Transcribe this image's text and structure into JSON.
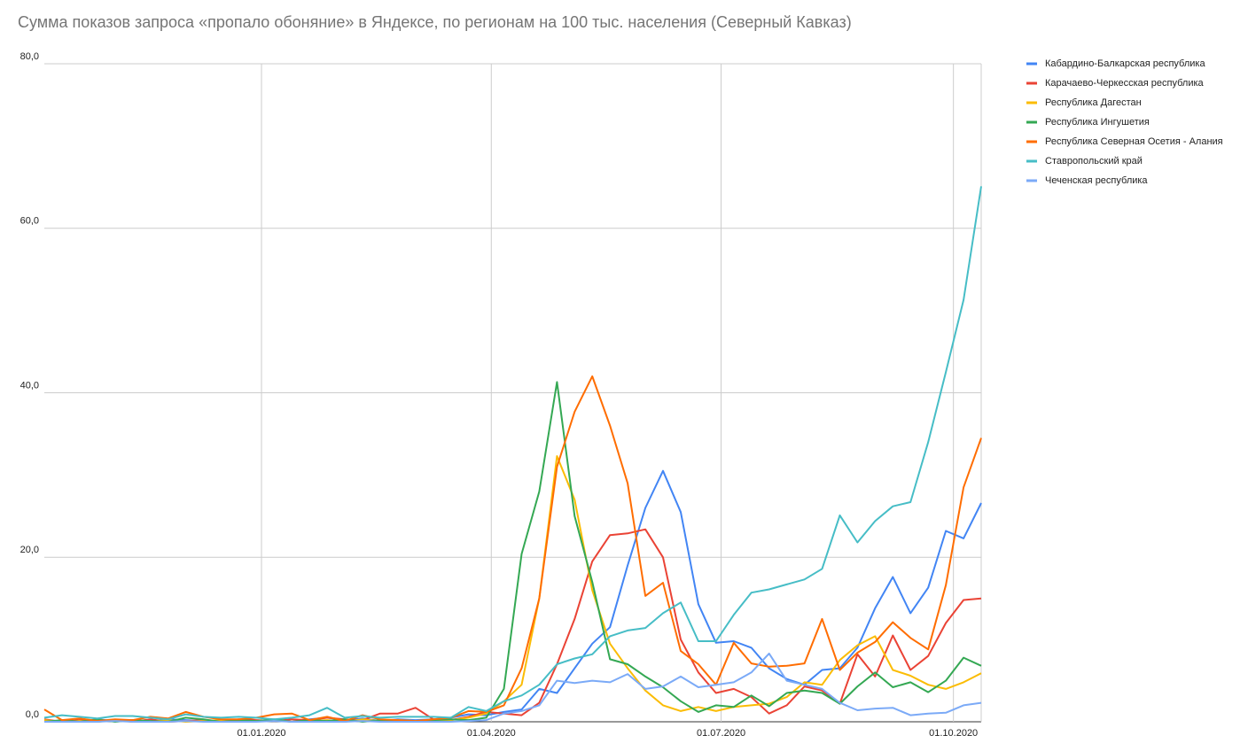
{
  "chart_data": {
    "type": "line",
    "title": "Сумма показов запроса «пропало обоняние» в Яндексе, по регионам на 100 тыс. населения (Северный Кавказ)",
    "x": [
      "2019-10-07",
      "2019-10-14",
      "2019-10-21",
      "2019-10-28",
      "2019-11-04",
      "2019-11-11",
      "2019-11-18",
      "2019-11-25",
      "2019-12-02",
      "2019-12-09",
      "2019-12-16",
      "2019-12-23",
      "2019-12-30",
      "2020-01-06",
      "2020-01-13",
      "2020-01-20",
      "2020-01-27",
      "2020-02-03",
      "2020-02-10",
      "2020-02-17",
      "2020-02-24",
      "2020-03-02",
      "2020-03-09",
      "2020-03-16",
      "2020-03-23",
      "2020-03-30",
      "2020-04-06",
      "2020-04-13",
      "2020-04-20",
      "2020-04-27",
      "2020-05-04",
      "2020-05-11",
      "2020-05-18",
      "2020-05-25",
      "2020-06-01",
      "2020-06-08",
      "2020-06-15",
      "2020-06-22",
      "2020-06-29",
      "2020-07-06",
      "2020-07-13",
      "2020-07-20",
      "2020-07-27",
      "2020-08-03",
      "2020-08-10",
      "2020-08-17",
      "2020-08-24",
      "2020-08-31",
      "2020-09-07",
      "2020-09-14",
      "2020-09-21",
      "2020-09-28",
      "2020-10-05",
      "2020-10-12"
    ],
    "xlim": [
      "2019-10-07",
      "2020-10-12"
    ],
    "xticks": [
      {
        "value": "2020-01-01",
        "label": "01.01.2020"
      },
      {
        "value": "2020-04-01",
        "label": "01.04.2020"
      },
      {
        "value": "2020-07-01",
        "label": "01.07.2020"
      },
      {
        "value": "2020-10-01",
        "label": "01.10.2020"
      }
    ],
    "ylim": [
      0,
      80
    ],
    "yticks": [
      {
        "value": 0,
        "label": "0,0"
      },
      {
        "value": 20,
        "label": "20,0"
      },
      {
        "value": 40,
        "label": "40,0"
      },
      {
        "value": 60,
        "label": "60,0"
      },
      {
        "value": 80,
        "label": "80,0"
      }
    ],
    "grid": true,
    "legend": "right",
    "series": [
      {
        "name": "Кабардино-Балкарская республика",
        "color": "#4285f4",
        "values": [
          0,
          0,
          0,
          0.3,
          0.1,
          0.2,
          0,
          0.3,
          0.2,
          0.1,
          0,
          0.2,
          0.1,
          0.2,
          0,
          0.3,
          0.5,
          0.2,
          0.4,
          0.1,
          0.3,
          0.2,
          0.3,
          0.5,
          0.9,
          0.8,
          1.2,
          1.5,
          4,
          3.5,
          6.5,
          9.5,
          11.5,
          19,
          26,
          30.5,
          25.5,
          14.3,
          9.6,
          9.8,
          9,
          6.5,
          5.2,
          4.5,
          6.3,
          6.5,
          9,
          13.8,
          17.6,
          13.2,
          16.3,
          23.2,
          22.3,
          26.6
        ]
      },
      {
        "name": "Карачаево-Черкесская республика",
        "color": "#ea4335",
        "values": [
          0.3,
          0,
          0.2,
          0,
          0.2,
          0,
          0.3,
          0,
          0.1,
          0.2,
          0,
          0.3,
          0.2,
          0.1,
          0.3,
          0.2,
          0.5,
          0.3,
          0.2,
          1,
          1,
          1.7,
          0.3,
          0.2,
          0.6,
          1.2,
          1,
          0.8,
          2.3,
          7,
          12.5,
          19.5,
          22.7,
          22.9,
          23.4,
          20,
          10,
          6,
          3.5,
          4,
          3,
          1,
          2,
          4.3,
          3.8,
          2.2,
          8.2,
          5.5,
          10.5,
          6.3,
          8,
          12,
          14.8,
          15
        ]
      },
      {
        "name": "Республика Дагестан",
        "color": "#fbbc04",
        "values": [
          0.2,
          0,
          0.1,
          0,
          0.2,
          0.1,
          0,
          0.2,
          0,
          0.1,
          0.2,
          0,
          0.1,
          0.2,
          0,
          0.1,
          0.2,
          0,
          0.3,
          0.1,
          0.2,
          0.1,
          0,
          0.2,
          0.5,
          1,
          2.5,
          4.5,
          15,
          32.3,
          27,
          16,
          9.5,
          6.5,
          3.8,
          2,
          1.3,
          1.8,
          1.3,
          1.8,
          2,
          2.2,
          3,
          4.8,
          4.5,
          7.5,
          9.3,
          10.4,
          6.3,
          5.6,
          4.5,
          4,
          4.8,
          5.9
        ]
      },
      {
        "name": "Республика Ингушетия",
        "color": "#34a853",
        "values": [
          0,
          0.2,
          0,
          0.3,
          0,
          0.2,
          0.1,
          0,
          0.5,
          0.3,
          0,
          0.2,
          0.1,
          0.3,
          0,
          0.2,
          0.1,
          0.3,
          0,
          0.2,
          0.1,
          0,
          0.2,
          0.3,
          0.2,
          0.5,
          4,
          20.4,
          28,
          41.3,
          25,
          17,
          7.6,
          7,
          5.5,
          4.2,
          2.5,
          1.2,
          2,
          1.8,
          3.2,
          1.9,
          3.5,
          3.8,
          3.5,
          2.2,
          4.3,
          6,
          4.2,
          4.8,
          3.6,
          5,
          7.8,
          6.8
        ]
      },
      {
        "name": "Республика Северная Осетия - Алания",
        "color": "#ff6d01",
        "values": [
          1.5,
          0.2,
          0.4,
          0.1,
          0.3,
          0.2,
          0.6,
          0.4,
          1.2,
          0.6,
          0.3,
          0.3,
          0.5,
          0.9,
          1,
          0.2,
          0.6,
          0.1,
          0.8,
          0.3,
          0.2,
          0.1,
          0.3,
          0.5,
          1.3,
          1.2,
          2,
          6.5,
          15,
          31,
          37.7,
          42,
          36,
          29,
          15.3,
          16.9,
          8.6,
          7,
          4.5,
          9.6,
          7.1,
          6.7,
          6.8,
          7.1,
          12.5,
          6.3,
          8.4,
          9.7,
          12.1,
          10.2,
          8.8,
          16.6,
          28.5,
          34.5
        ]
      },
      {
        "name": "Ставропольский край",
        "color": "#46bdc6",
        "values": [
          0.5,
          0.8,
          0.6,
          0.4,
          0.7,
          0.7,
          0.5,
          0.3,
          0.9,
          0.6,
          0.5,
          0.6,
          0.5,
          0.3,
          0.5,
          0.8,
          1.7,
          0.5,
          0.7,
          0.5,
          0.6,
          0.6,
          0.6,
          0.5,
          1.8,
          1.3,
          2.5,
          3.2,
          4.5,
          7,
          7.7,
          8.2,
          10.4,
          11.1,
          11.4,
          13.2,
          14.5,
          9.8,
          9.8,
          13,
          15.7,
          16.1,
          16.7,
          17.3,
          18.6,
          25.1,
          21.8,
          24.4,
          26.2,
          26.7,
          34,
          42.5,
          51.3,
          65.1
        ]
      },
      {
        "name": "Чеченская республика",
        "color": "#7baaf7",
        "values": [
          0,
          0,
          0,
          0,
          0.1,
          0,
          0,
          0,
          0.1,
          0,
          0,
          0,
          0,
          0.1,
          0,
          0,
          0,
          0,
          0.1,
          0,
          0,
          0,
          0,
          0,
          0.1,
          0.2,
          1,
          1.3,
          2,
          5,
          4.7,
          5,
          4.8,
          5.8,
          4,
          4.3,
          5.5,
          4.2,
          4.5,
          4.8,
          6,
          8.3,
          5,
          4.5,
          4,
          2.3,
          1.4,
          1.6,
          1.7,
          0.8,
          1,
          1.1,
          2,
          2.3
        ]
      }
    ]
  }
}
